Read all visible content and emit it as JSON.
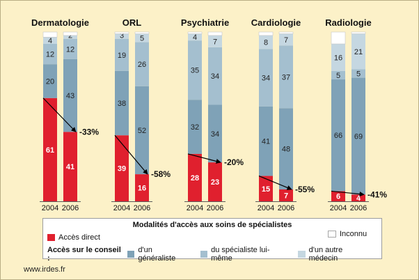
{
  "colors": {
    "background": "#fcf1c8",
    "direct": "#e0202e",
    "generaliste": "#7fa2b7",
    "specialiste": "#a4bfcf",
    "autre_medecin": "#c5d7e1",
    "inconnu": "#ffffff"
  },
  "legend": {
    "title": "Modalités d'accès aux soins de spécialistes",
    "direct": "Accès direct",
    "inconnu": "Inconnu",
    "conseil_prefix": "Accès sur le conseil :",
    "generaliste": "d'un généraliste",
    "specialiste": "du spécialiste lui-même",
    "autre_medecin": "d'un autre médecin"
  },
  "source": "www.irdes.fr",
  "chart_data": {
    "type": "bar",
    "stacked": true,
    "ylim": [
      0,
      100
    ],
    "grid": false,
    "legend_position": "bottom",
    "series_names": [
      "Accès direct",
      "d'un généraliste",
      "du spécialiste lui-même",
      "d'un autre médecin",
      "Inconnu"
    ],
    "groups": [
      {
        "title": "Dermatologie",
        "bars": [
          {
            "year": "2004",
            "values": [
              61,
              20,
              12,
              4,
              3
            ],
            "labels": [
              "61",
              "20",
              "12",
              "4",
              ""
            ]
          },
          {
            "year": "2006",
            "values": [
              41,
              43,
              12,
              2,
              2
            ],
            "labels": [
              "41",
              "43",
              "12",
              "2",
              ""
            ]
          }
        ],
        "change": "-33%"
      },
      {
        "title": "ORL",
        "bars": [
          {
            "year": "2004",
            "values": [
              39,
              38,
              19,
              3,
              1
            ],
            "labels": [
              "39",
              "38",
              "19",
              "3",
              ""
            ]
          },
          {
            "year": "2006",
            "values": [
              16,
              52,
              26,
              5,
              1
            ],
            "labels": [
              "16",
              "52",
              "26",
              "5",
              ""
            ]
          }
        ],
        "change": "-58%"
      },
      {
        "title": "Psychiatrie",
        "bars": [
          {
            "year": "2004",
            "values": [
              28,
              32,
              35,
              4,
              1
            ],
            "labels": [
              "28",
              "32",
              "35",
              "4",
              ""
            ]
          },
          {
            "year": "2006",
            "values": [
              23,
              34,
              34,
              7,
              2
            ],
            "labels": [
              "23",
              "34",
              "34",
              "7",
              ""
            ]
          }
        ],
        "change": "-20%"
      },
      {
        "title": "Cardiologie",
        "bars": [
          {
            "year": "2004",
            "values": [
              15,
              41,
              34,
              8,
              2
            ],
            "labels": [
              "15",
              "41",
              "34",
              "8",
              ""
            ]
          },
          {
            "year": "2006",
            "values": [
              7,
              48,
              37,
              7,
              1
            ],
            "labels": [
              "7",
              "48",
              "37",
              "7",
              ""
            ]
          }
        ],
        "change": "-55%"
      },
      {
        "title": "Radiologie",
        "bars": [
          {
            "year": "2004",
            "values": [
              6,
              66,
              5,
              16,
              7
            ],
            "labels": [
              "6",
              "66",
              "5",
              "16",
              ""
            ]
          },
          {
            "year": "2006",
            "values": [
              4,
              69,
              5,
              21,
              1
            ],
            "labels": [
              "4",
              "69",
              "5",
              "21",
              ""
            ]
          }
        ],
        "change": "-41%"
      }
    ]
  }
}
